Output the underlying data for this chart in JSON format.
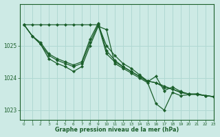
{
  "background_color": "#cdeae5",
  "grid_color": "#b0d8d2",
  "line_color": "#1a5e2a",
  "marker_color": "#1a5e2a",
  "xlabel": "Graphe pression niveau de la mer (hPa)",
  "ylim": [
    1022.7,
    1026.3
  ],
  "xlim": [
    -0.5,
    23
  ],
  "yticks": [
    1023,
    1024,
    1025
  ],
  "xticks": [
    0,
    1,
    2,
    3,
    4,
    5,
    6,
    7,
    8,
    9,
    10,
    11,
    12,
    13,
    14,
    15,
    16,
    17,
    18,
    19,
    20,
    21,
    22,
    23
  ],
  "series": [
    [
      1025.65,
      1025.65,
      1025.65,
      1025.65,
      1025.65,
      1025.65,
      1025.65,
      1025.65,
      1025.65,
      1025.65,
      1025.0,
      1024.7,
      1024.45,
      1024.3,
      1024.1,
      1023.9,
      1023.85,
      1023.75,
      1023.65,
      1023.55,
      1023.5,
      1023.5,
      1023.45,
      1023.42
    ],
    [
      1025.65,
      1025.3,
      1025.1,
      1024.75,
      1024.6,
      1024.5,
      1024.4,
      1024.5,
      1025.2,
      1025.7,
      1024.85,
      1024.55,
      1024.35,
      1024.2,
      1024.05,
      1023.9,
      1023.85,
      1023.7,
      1023.65,
      1023.55,
      1023.5,
      1023.48,
      1023.45,
      1023.42
    ],
    [
      1025.65,
      1025.3,
      1025.05,
      1024.7,
      1024.55,
      1024.45,
      1024.35,
      1024.45,
      1025.1,
      1025.65,
      1024.75,
      1024.5,
      1024.35,
      1024.2,
      1024.05,
      1023.88,
      1024.05,
      1023.6,
      1023.72,
      1023.58,
      1023.5,
      1023.5,
      1023.45,
      1023.42
    ],
    [
      1025.65,
      1025.3,
      1025.05,
      1024.6,
      1024.45,
      1024.35,
      1024.2,
      1024.35,
      1025.0,
      1025.6,
      1025.5,
      1024.45,
      1024.3,
      1024.15,
      1024.0,
      1023.85,
      1023.2,
      1023.0,
      1023.55,
      1023.45,
      1023.48,
      1023.5,
      1023.45,
      1023.42
    ]
  ]
}
